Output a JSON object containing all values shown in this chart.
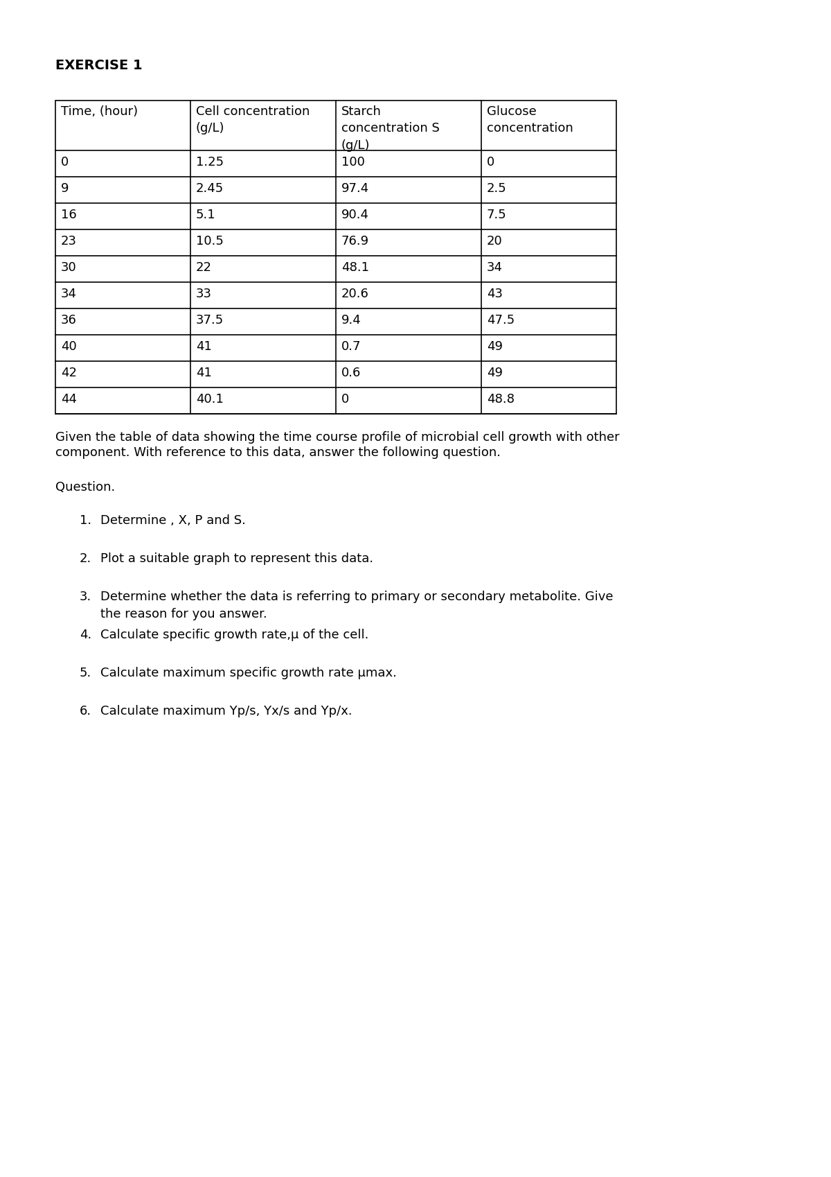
{
  "title": "EXERCISE 1",
  "table_headers": [
    "Time, (hour)",
    "Cell concentration\n(g/L)",
    "Starch\nconcentration S\n(g/L)",
    "Glucose\nconcentration"
  ],
  "table_data": [
    [
      "0",
      "1.25",
      "100",
      "0"
    ],
    [
      "9",
      "2.45",
      "97.4",
      "2.5"
    ],
    [
      "16",
      "5.1",
      "90.4",
      "7.5"
    ],
    [
      "23",
      "10.5",
      "76.9",
      "20"
    ],
    [
      "30",
      "22",
      "48.1",
      "34"
    ],
    [
      "34",
      "33",
      "20.6",
      "43"
    ],
    [
      "36",
      "37.5",
      "9.4",
      "47.5"
    ],
    [
      "40",
      "41",
      "0.7",
      "49"
    ],
    [
      "42",
      "41",
      "0.6",
      "49"
    ],
    [
      "44",
      "40.1",
      "0",
      "48.8"
    ]
  ],
  "description_line1": "Given the table of data showing the time course profile of microbial cell growth with other",
  "description_line2": "component. With reference to this data, answer the following question.",
  "question_label": "Question.",
  "questions": [
    "Determine , X, P and S.",
    "Plot a suitable graph to represent this data.",
    "Determine whether the data is referring to primary or secondary metabolite. Give\nthe reason for you answer.",
    "Calculate specific growth rate,μ of the cell.",
    "Calculate maximum specific growth rate μmax.",
    "Calculate maximum Yp/s, Yx/s and Yp/x."
  ],
  "bg_color": "#ffffff",
  "text_color": "#000000",
  "title_fontsize": 14,
  "body_fontsize": 13,
  "table_fontsize": 13
}
